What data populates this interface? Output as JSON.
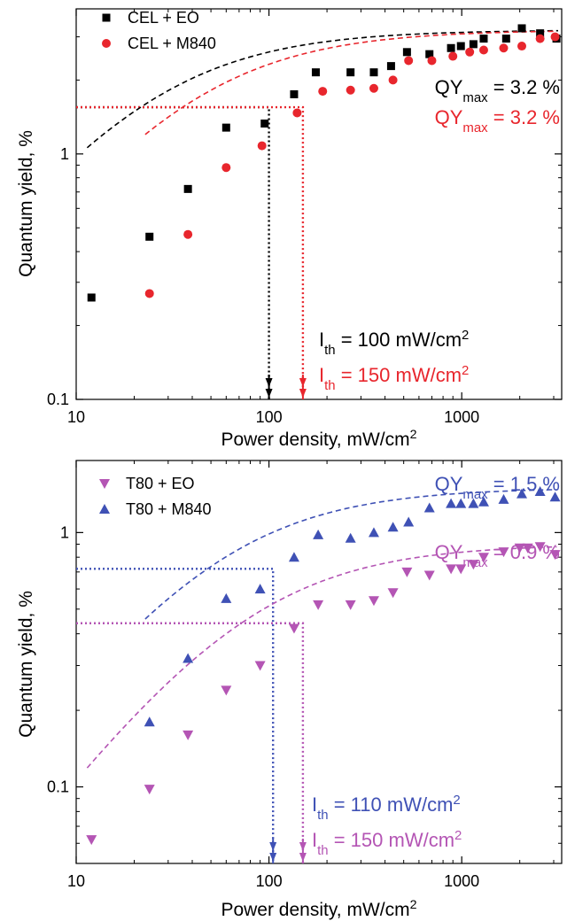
{
  "chart_data": [
    {
      "type": "scatter",
      "xscale": "log",
      "yscale": "log",
      "xlim": [
        10,
        3300
      ],
      "ylim": [
        0.1,
        3.9
      ],
      "xlabel": "Power density, mW/cm",
      "xlabel_sup": "2",
      "ylabel": "Quantum yield, %",
      "xticks": [
        {
          "value": 10,
          "label": "10"
        },
        {
          "value": 100,
          "label": "100"
        },
        {
          "value": 1000,
          "label": "1000"
        }
      ],
      "yticks": [
        {
          "value": 0.1,
          "label": "0.1"
        },
        {
          "value": 1,
          "label": "1"
        }
      ],
      "grid": false,
      "legend_position": "top-left",
      "series": [
        {
          "name": "CEL + EO",
          "marker": "square",
          "color": "#000000",
          "x": [
            12,
            24,
            38,
            60,
            95,
            135,
            175,
            265,
            350,
            430,
            520,
            680,
            880,
            990,
            1150,
            1300,
            1700,
            2050,
            2550,
            3100
          ],
          "y": [
            0.26,
            0.46,
            0.72,
            1.28,
            1.33,
            1.75,
            2.15,
            2.15,
            2.15,
            2.28,
            2.6,
            2.55,
            2.7,
            2.75,
            2.8,
            2.95,
            2.95,
            3.25,
            3.1,
            2.95
          ],
          "fit_qymax": 3.2,
          "fit_p50": 23
        },
        {
          "name": "CEL + M840",
          "marker": "circle",
          "color": "#e8262d",
          "x": [
            24,
            38,
            60,
            92,
            140,
            190,
            265,
            350,
            440,
            530,
            700,
            900,
            1100,
            1300,
            1650,
            2050,
            2550,
            3050
          ],
          "y": [
            0.27,
            0.47,
            0.88,
            1.08,
            1.47,
            1.8,
            1.82,
            1.85,
            2.0,
            2.4,
            2.4,
            2.5,
            2.6,
            2.65,
            2.7,
            2.75,
            2.95,
            3.0
          ],
          "fit_qymax": 3.2,
          "fit_p50": 38
        }
      ],
      "thresholds": [
        {
          "x": 100,
          "y": 1.55,
          "color": "#000000",
          "label": "I",
          "sub": "th",
          "value": " = 100 mW/cm",
          "sup": "2"
        },
        {
          "x": 150,
          "y": 1.55,
          "color": "#e8262d",
          "label": "I",
          "sub": "th",
          "value": " = 150 mW/cm",
          "sup": "2"
        }
      ],
      "annotations": [
        {
          "text": "QY",
          "sub": "max",
          "value": " = 3.2 %",
          "color": "#000000"
        },
        {
          "text": "QY",
          "sub": "max",
          "value": " = 3.2 %",
          "color": "#e8262d"
        }
      ]
    },
    {
      "type": "scatter",
      "xscale": "log",
      "yscale": "log",
      "xlim": [
        10,
        3300
      ],
      "ylim": [
        0.05,
        1.92
      ],
      "xlabel": "Power density, mW/cm",
      "xlabel_sup": "2",
      "ylabel": "Quantum yield, %",
      "xticks": [
        {
          "value": 10,
          "label": "10"
        },
        {
          "value": 100,
          "label": "100"
        },
        {
          "value": 1000,
          "label": "1000"
        }
      ],
      "yticks": [
        {
          "value": 0.1,
          "label": "0.1"
        },
        {
          "value": 1,
          "label": "1"
        }
      ],
      "grid": false,
      "legend_position": "top-left",
      "series": [
        {
          "name": "T80 + EO",
          "marker": "triangle-down",
          "color": "#b455b4",
          "x": [
            12,
            24,
            38,
            60,
            90,
            135,
            180,
            265,
            350,
            440,
            520,
            680,
            880,
            990,
            1150,
            1300,
            1650,
            2000,
            2200,
            2550,
            3050
          ],
          "y": [
            0.062,
            0.098,
            0.16,
            0.24,
            0.3,
            0.42,
            0.52,
            0.52,
            0.54,
            0.58,
            0.7,
            0.68,
            0.72,
            0.72,
            0.75,
            0.8,
            0.84,
            0.87,
            0.87,
            0.88,
            0.82
          ],
          "fit_qymax": 0.9,
          "fit_p50": 75
        },
        {
          "name": "T80 + M840",
          "marker": "triangle-up",
          "color": "#3f51b5",
          "x": [
            24,
            38,
            60,
            90,
            135,
            180,
            265,
            350,
            440,
            530,
            680,
            880,
            990,
            1150,
            1300,
            1650,
            2050,
            2550,
            3050
          ],
          "y": [
            0.18,
            0.32,
            0.55,
            0.6,
            0.8,
            0.98,
            0.95,
            1.0,
            1.05,
            1.1,
            1.25,
            1.3,
            1.3,
            1.3,
            1.32,
            1.35,
            1.42,
            1.45,
            1.38
          ],
          "fit_qymax": 1.5,
          "fit_p50": 52
        }
      ],
      "thresholds": [
        {
          "x": 105,
          "y": 0.72,
          "color": "#3f51b5",
          "label": "I",
          "sub": "th",
          "value": " = 110 mW/cm",
          "sup": "2"
        },
        {
          "x": 150,
          "y": 0.44,
          "color": "#b455b4",
          "label": "I",
          "sub": "th",
          "value": " = 150 mW/cm",
          "sup": "2"
        }
      ],
      "annotations": [
        {
          "text": "QY",
          "sub": "max",
          "value": " = 1.5 %",
          "color": "#3f51b5"
        },
        {
          "text": "QY",
          "sub": "max",
          "value": " = 0.9 %",
          "color": "#b455b4"
        }
      ]
    }
  ]
}
